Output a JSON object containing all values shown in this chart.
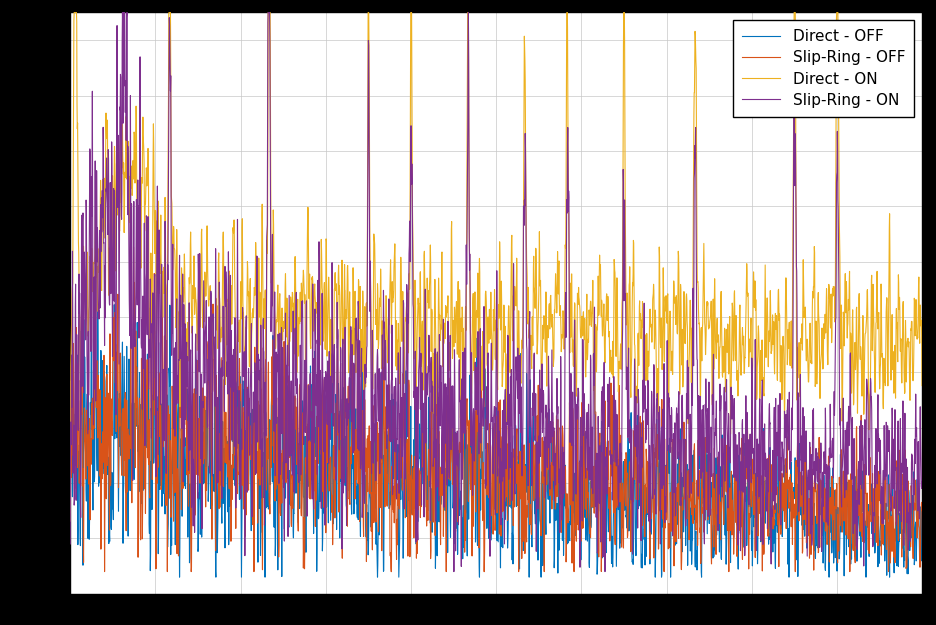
{
  "title": "",
  "xlabel": "",
  "ylabel": "",
  "legend_labels": [
    "Direct - OFF",
    "Slip-Ring - OFF",
    "Direct - ON",
    "Slip-Ring - ON"
  ],
  "colors": [
    "#0072BD",
    "#D95319",
    "#EDB120",
    "#7E2F8E"
  ],
  "line_width": 0.8,
  "background_color": "#ffffff",
  "grid_color": "#c8c8c8",
  "fig_facecolor": "#000000",
  "axes_facecolor": "#ffffff",
  "n_points": 3000,
  "seed": 7,
  "xlim": [
    0,
    3000
  ],
  "ylim": [
    0.0,
    1.05
  ]
}
